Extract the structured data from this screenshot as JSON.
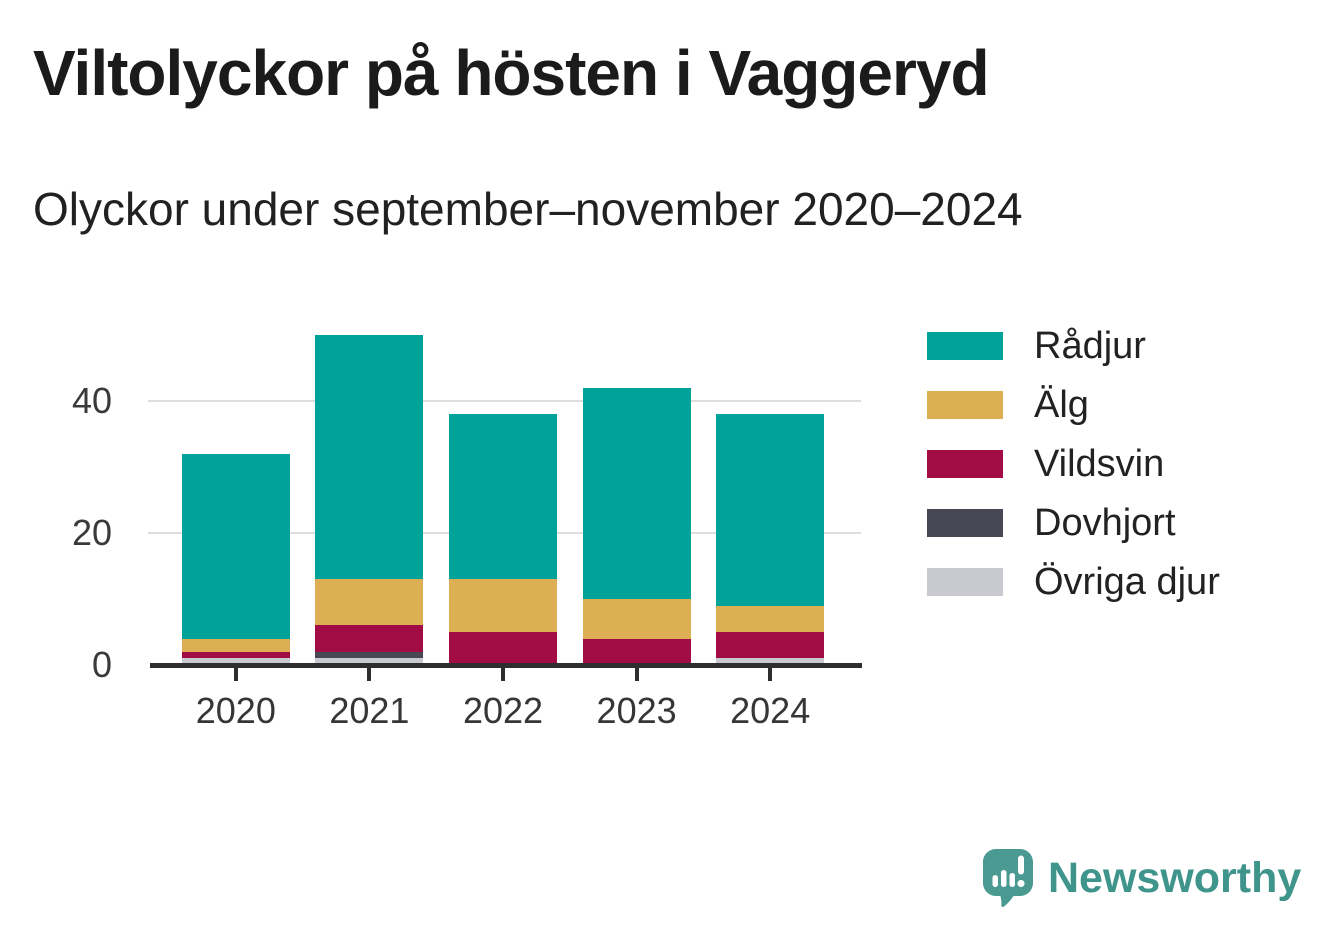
{
  "header": {
    "title": "Viltolyckor på hösten i Vaggeryd",
    "subtitle": "Olyckor under september–november 2020–2024"
  },
  "chart_data": {
    "type": "bar",
    "stacked": true,
    "title": "Viltolyckor på hösten i Vaggeryd",
    "subtitle": "Olyckor under september–november 2020–2024",
    "categories": [
      "2020",
      "2021",
      "2022",
      "2023",
      "2024"
    ],
    "series": [
      {
        "name": "Rådjur",
        "color": "#00a29a",
        "values": [
          28,
          37,
          25,
          32,
          29
        ]
      },
      {
        "name": "Älg",
        "color": "#ddaf55",
        "values": [
          2,
          7,
          8,
          6,
          4
        ]
      },
      {
        "name": "Vildsvin",
        "color": "#a20c44",
        "values": [
          1,
          4,
          5,
          4,
          4
        ]
      },
      {
        "name": "Dovhjort",
        "color": "#484855",
        "values": [
          0,
          1,
          0,
          0,
          0
        ]
      },
      {
        "name": "Övriga djur",
        "color": "#c9c9d2",
        "values": [
          1,
          1,
          0,
          0,
          1
        ]
      }
    ],
    "ylim": [
      0,
      50
    ],
    "yticks": [
      0,
      20,
      40
    ],
    "xlabel": "",
    "ylabel": "",
    "grid": "horizontal",
    "legend_position": "right"
  },
  "footer": {
    "brand": "Newsworthy",
    "brand_color": "#3f948c",
    "logo_color": "#4a9a92"
  },
  "colors": {
    "axis": "#2e2e2e",
    "gridline": "#dedede",
    "title_text": "#1b1b1b"
  }
}
